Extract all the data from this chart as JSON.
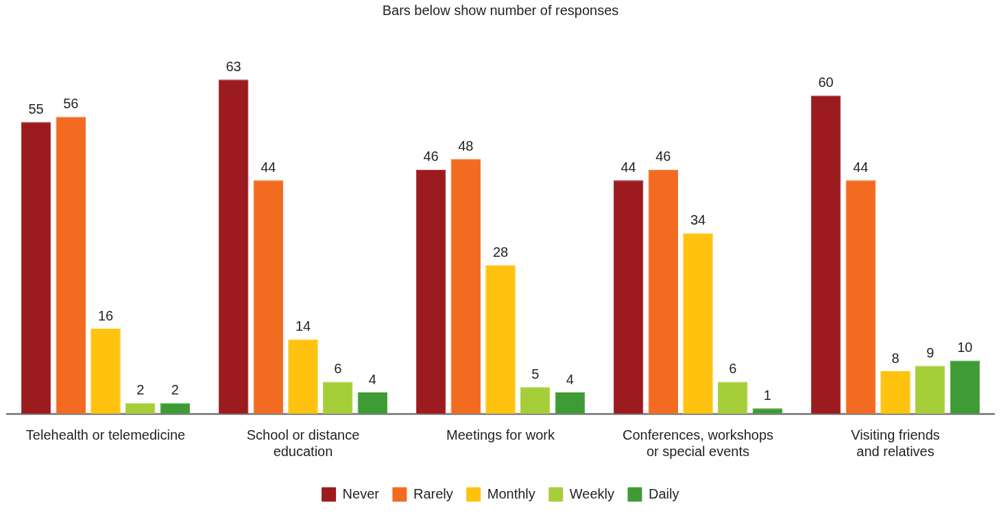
{
  "chart_data": {
    "type": "bar",
    "title": "Bars below show number of responses",
    "categories": [
      "Telehealth or telemedicine",
      "School or distance education",
      "Meetings for work",
      "Conferences, workshops or special events",
      "Visiting friends and relatives"
    ],
    "series": [
      {
        "name": "Never",
        "color": "#9b1b1f",
        "values": [
          55,
          63,
          46,
          44,
          60
        ]
      },
      {
        "name": "Rarely",
        "color": "#f26b21",
        "values": [
          56,
          44,
          48,
          46,
          44
        ]
      },
      {
        "name": "Monthly",
        "color": "#ffc20e",
        "values": [
          16,
          14,
          28,
          34,
          8
        ]
      },
      {
        "name": "Weekly",
        "color": "#a6ce39",
        "values": [
          2,
          6,
          5,
          6,
          9
        ]
      },
      {
        "name": "Daily",
        "color": "#3f9b35",
        "values": [
          2,
          4,
          4,
          1,
          10
        ]
      }
    ],
    "data_labels": true,
    "grid": false,
    "legend": "bottom"
  }
}
